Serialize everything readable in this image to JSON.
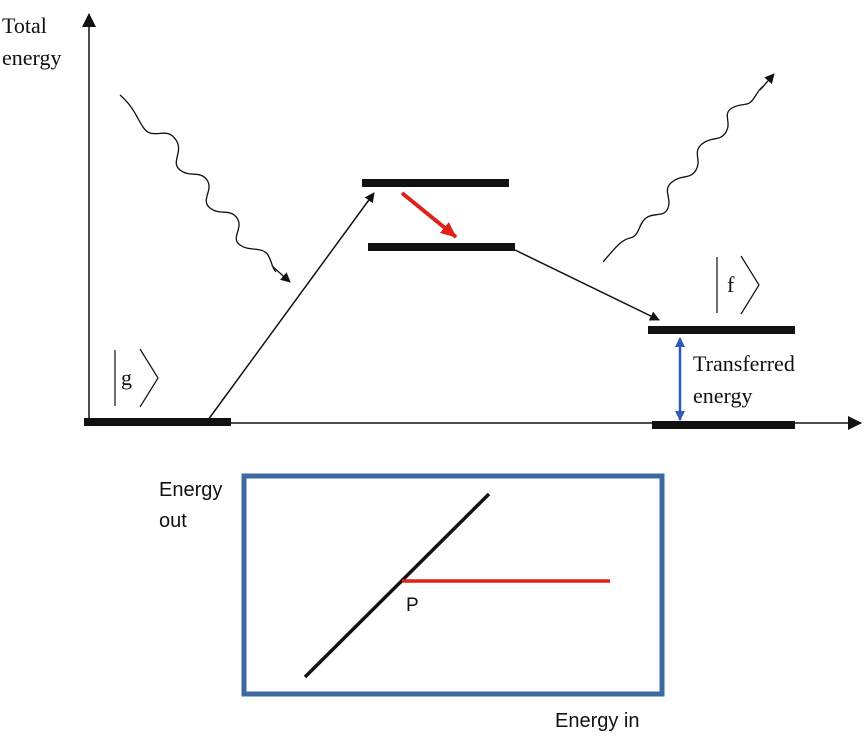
{
  "axis_label": {
    "line1": "Total",
    "line2": "energy"
  },
  "states": {
    "ground": "g",
    "final": "f"
  },
  "transferred_label": {
    "line1": "Transferred",
    "line2": "energy"
  },
  "inset": {
    "ylabel": {
      "line1": "Energy",
      "line2": "out"
    },
    "xlabel": "Energy in",
    "point_label": "P"
  },
  "colors": {
    "black": "#111111",
    "red": "#e0201b",
    "blue": "#2a5cb8",
    "box_border": "#3b6aa0"
  }
}
